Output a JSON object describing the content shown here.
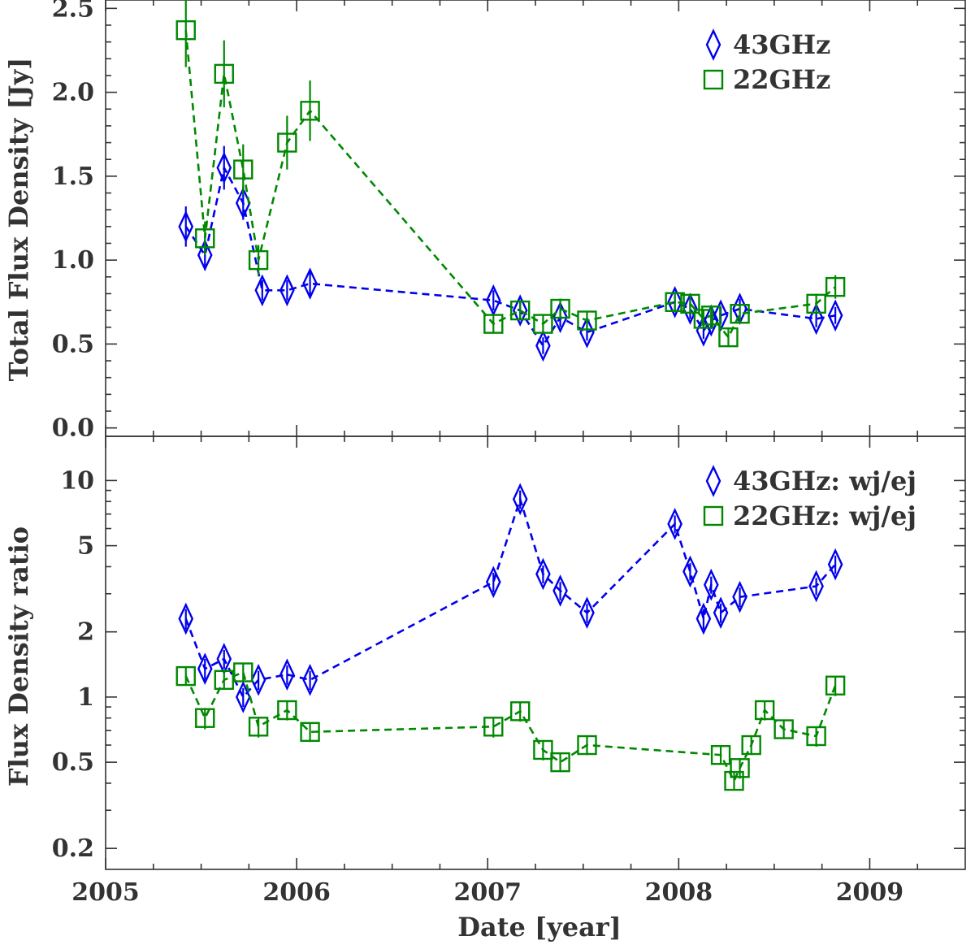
{
  "chart_data": [
    {
      "type": "line",
      "panel": "top",
      "title": "",
      "xlabel": "",
      "ylabel": "Total Flux Density [Jy]",
      "xlim": [
        2005.0,
        2009.5
      ],
      "ylim": [
        -0.05,
        2.55
      ],
      "yscale": "linear",
      "x_ticks": [
        "2005",
        "2006",
        "2007",
        "2008",
        "2009"
      ],
      "y_ticks": [
        {
          "value": 0.0,
          "label": "0.0"
        },
        {
          "value": 0.5,
          "label": "0.5"
        },
        {
          "value": 1.0,
          "label": "1.0"
        },
        {
          "value": 1.5,
          "label": "1.5"
        },
        {
          "value": 2.0,
          "label": "2.0"
        },
        {
          "value": 2.5,
          "label": "2.5"
        }
      ],
      "legend_position": "top-right",
      "series": [
        {
          "name": "43GHz",
          "marker": "diamond",
          "color": "#0000ee",
          "x": [
            2005.42,
            2005.52,
            2005.62,
            2005.72,
            2005.82,
            2005.95,
            2006.07,
            2007.03,
            2007.17,
            2007.29,
            2007.38,
            2007.52,
            2007.98,
            2008.06,
            2008.13,
            2008.17,
            2008.22,
            2008.32,
            2008.72,
            2008.82
          ],
          "y": [
            1.2,
            1.03,
            1.55,
            1.34,
            0.82,
            0.82,
            0.86,
            0.76,
            0.7,
            0.49,
            0.66,
            0.57,
            0.75,
            0.71,
            0.58,
            0.64,
            0.67,
            0.71,
            0.65,
            0.67
          ],
          "yerr": [
            0.12,
            0.09,
            0.13,
            0.1,
            0.06,
            0.06,
            0.07,
            0.06,
            0.06,
            0.05,
            0.06,
            0.05,
            0.06,
            0.06,
            0.05,
            0.05,
            0.05,
            0.06,
            0.05,
            0.05
          ]
        },
        {
          "name": "22GHz",
          "marker": "square",
          "color": "#008800",
          "x": [
            2005.42,
            2005.52,
            2005.62,
            2005.72,
            2005.8,
            2005.95,
            2006.07,
            2007.03,
            2007.17,
            2007.29,
            2007.38,
            2007.52,
            2007.98,
            2008.06,
            2008.13,
            2008.17,
            2008.26,
            2008.32,
            2008.72,
            2008.82
          ],
          "y": [
            2.37,
            1.13,
            2.11,
            1.54,
            1.0,
            1.7,
            1.89,
            0.62,
            0.7,
            0.62,
            0.71,
            0.64,
            0.75,
            0.74,
            0.65,
            0.67,
            0.54,
            0.68,
            0.74,
            0.84
          ],
          "yerr": [
            0.22,
            0.1,
            0.2,
            0.15,
            0.09,
            0.16,
            0.18,
            0.05,
            0.06,
            0.05,
            0.06,
            0.05,
            0.06,
            0.06,
            0.05,
            0.05,
            0.05,
            0.06,
            0.06,
            0.07
          ]
        }
      ]
    },
    {
      "type": "line",
      "panel": "bottom",
      "title": "",
      "xlabel": "Date [year]",
      "ylabel": "Flux Density ratio",
      "xlim": [
        2005.0,
        2009.5
      ],
      "ylim": [
        0.16,
        16
      ],
      "yscale": "log",
      "x_ticks": [
        "2005",
        "2006",
        "2007",
        "2008",
        "2009"
      ],
      "y_ticks": [
        {
          "value": 0.2,
          "label": "0.2"
        },
        {
          "value": 0.5,
          "label": "0.5"
        },
        {
          "value": 1,
          "label": "1"
        },
        {
          "value": 2,
          "label": "2"
        },
        {
          "value": 5,
          "label": "5"
        },
        {
          "value": 10,
          "label": "10"
        }
      ],
      "legend_position": "top-right",
      "series": [
        {
          "name": "43GHz: wj/ej",
          "marker": "diamond",
          "color": "#0000ee",
          "x": [
            2005.42,
            2005.52,
            2005.62,
            2005.72,
            2005.8,
            2005.95,
            2006.07,
            2007.03,
            2007.17,
            2007.29,
            2007.38,
            2007.52,
            2007.98,
            2008.06,
            2008.13,
            2008.17,
            2008.22,
            2008.32,
            2008.72,
            2008.82
          ],
          "y": [
            2.3,
            1.35,
            1.5,
            1.0,
            1.2,
            1.27,
            1.2,
            3.4,
            8.2,
            3.7,
            3.1,
            2.45,
            6.3,
            3.8,
            2.3,
            3.3,
            2.45,
            2.9,
            3.25,
            4.1
          ],
          "yerr": [
            0.25,
            0.15,
            0.15,
            0.1,
            0.12,
            0.13,
            0.12,
            0.35,
            0.8,
            0.35,
            0.3,
            0.25,
            0.6,
            0.35,
            0.25,
            0.3,
            0.25,
            0.3,
            0.3,
            0.4
          ]
        },
        {
          "name": "22GHz: wj/ej",
          "marker": "square",
          "color": "#008800",
          "x": [
            2005.42,
            2005.52,
            2005.62,
            2005.72,
            2005.8,
            2005.95,
            2006.07,
            2007.03,
            2007.17,
            2007.29,
            2007.38,
            2007.52,
            2008.22,
            2008.29,
            2008.32,
            2008.38,
            2008.45,
            2008.55,
            2008.72,
            2008.82
          ],
          "y": [
            1.25,
            0.8,
            1.2,
            1.3,
            0.73,
            0.87,
            0.69,
            0.73,
            0.86,
            0.57,
            0.5,
            0.6,
            0.54,
            0.41,
            0.47,
            0.6,
            0.87,
            0.71,
            0.66,
            1.13
          ],
          "yerr": [
            0.12,
            0.09,
            0.12,
            0.13,
            0.08,
            0.09,
            0.07,
            0.08,
            0.09,
            0.06,
            0.05,
            0.06,
            0.05,
            0.04,
            0.05,
            0.06,
            0.09,
            0.07,
            0.07,
            0.12
          ]
        }
      ]
    }
  ]
}
